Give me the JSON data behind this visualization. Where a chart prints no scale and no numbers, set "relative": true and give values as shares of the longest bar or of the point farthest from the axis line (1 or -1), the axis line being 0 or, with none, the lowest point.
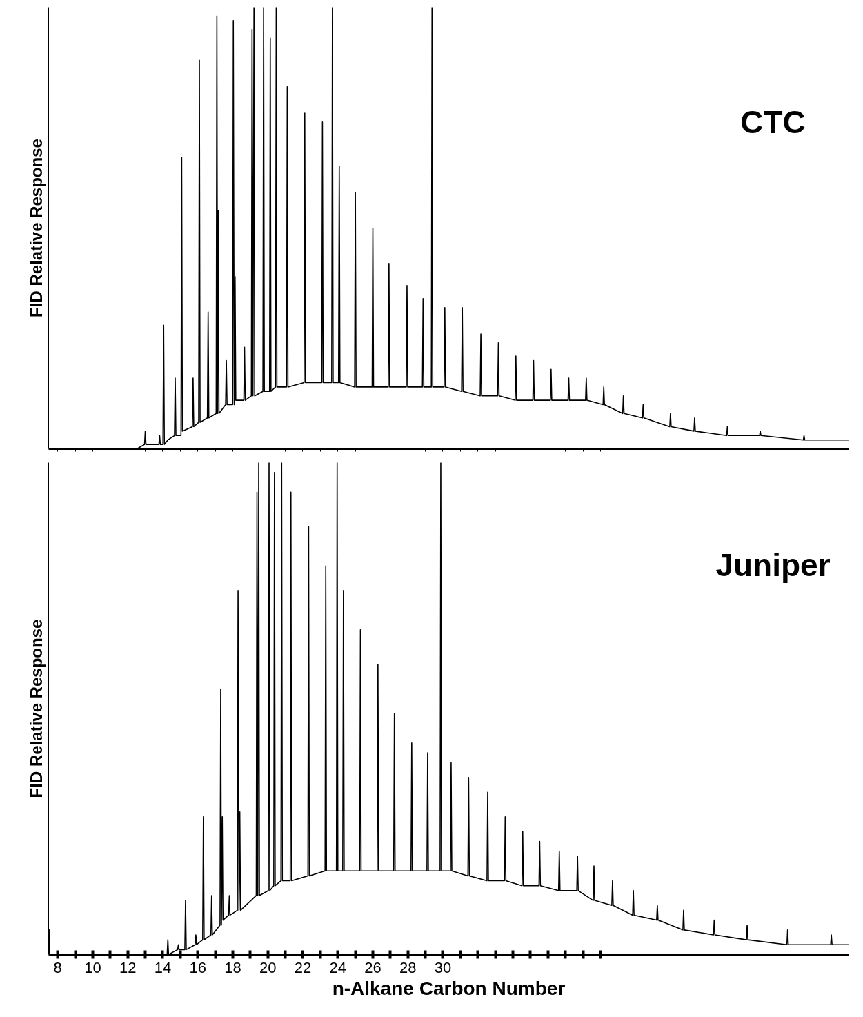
{
  "chart_data": [
    {
      "type": "line",
      "relative": true,
      "ylabel": "FID Relative Response",
      "annotations": [
        "CTC"
      ],
      "xlim": [
        7.48,
        53.19
      ],
      "tick_labels": false,
      "marker": "none",
      "line_style": "solid",
      "xticks": [
        8,
        9,
        10,
        11,
        12,
        13,
        14,
        15,
        16,
        17,
        18,
        19,
        20,
        21,
        22,
        23,
        24,
        25,
        26,
        27,
        28,
        29,
        30,
        31,
        32,
        33,
        34,
        35,
        36,
        37,
        38,
        39
      ],
      "series": [
        {
          "color": "#000000",
          "x": [
            7.48,
            9.22,
            11.06,
            12.53,
            12.96,
            13.0,
            13.04,
            13.51,
            13.78,
            13.82,
            13.86,
            14.01,
            14.05,
            14.09,
            14.29,
            14.67,
            14.71,
            14.75,
            15.04,
            15.08,
            15.12,
            15.69,
            15.73,
            15.77,
            16.05,
            16.09,
            16.13,
            16.55,
            16.59,
            16.63,
            17.05,
            17.09,
            17.13,
            17.17,
            17.21,
            17.59,
            17.63,
            17.67,
            17.99,
            18.03,
            18.08,
            18.13,
            18.17,
            18.63,
            18.67,
            18.71,
            19.06,
            19.1,
            19.15,
            19.21,
            19.25,
            19.72,
            19.76,
            19.8,
            20.1,
            20.14,
            20.18,
            20.44,
            20.48,
            20.52,
            21.07,
            21.11,
            21.15,
            22.07,
            22.11,
            22.15,
            23.08,
            23.12,
            23.16,
            23.65,
            23.69,
            23.73,
            24.04,
            24.08,
            24.12,
            24.96,
            25.0,
            25.04,
            25.96,
            26.0,
            26.04,
            26.88,
            26.92,
            26.96,
            27.91,
            27.95,
            27.99,
            28.83,
            28.87,
            28.91,
            29.34,
            29.38,
            29.42,
            30.07,
            30.11,
            30.15,
            31.07,
            31.11,
            31.15,
            32.13,
            32.17,
            32.21,
            33.13,
            33.17,
            33.21,
            34.13,
            34.17,
            34.21,
            35.14,
            35.18,
            35.22,
            36.14,
            36.18,
            36.22,
            37.15,
            37.19,
            37.23,
            38.15,
            38.19,
            38.23,
            39.15,
            39.19,
            39.23,
            40.27,
            40.31,
            40.35,
            41.4,
            41.44,
            41.48,
            42.96,
            43.0,
            43.04,
            44.34,
            44.38,
            44.42,
            46.21,
            46.25,
            46.29,
            48.09,
            48.13,
            48.17,
            50.59,
            50.63,
            50.67,
            53.19
          ],
          "values": [
            0,
            0,
            0,
            0,
            0.01,
            0.04,
            0.01,
            0.01,
            0.01,
            0.03,
            0.01,
            0.01,
            0.28,
            0.01,
            0.02,
            0.03,
            0.16,
            0.03,
            0.03,
            0.66,
            0.04,
            0.05,
            0.16,
            0.05,
            0.06,
            0.88,
            0.06,
            0.07,
            0.31,
            0.07,
            0.08,
            0.98,
            0.08,
            0.54,
            0.08,
            0.1,
            0.2,
            0.1,
            0.1,
            0.97,
            0.1,
            0.39,
            0.11,
            0.11,
            0.23,
            0.11,
            0.12,
            0.95,
            0.12,
            1.0,
            0.12,
            0.13,
            1.0,
            0.13,
            0.13,
            0.93,
            0.13,
            0.14,
            1.0,
            0.14,
            0.14,
            0.82,
            0.14,
            0.15,
            0.76,
            0.15,
            0.15,
            0.74,
            0.15,
            0.15,
            1.0,
            0.15,
            0.15,
            0.64,
            0.15,
            0.14,
            0.58,
            0.14,
            0.14,
            0.5,
            0.14,
            0.14,
            0.42,
            0.14,
            0.14,
            0.37,
            0.14,
            0.14,
            0.34,
            0.14,
            0.14,
            1.0,
            0.14,
            0.14,
            0.32,
            0.14,
            0.13,
            0.32,
            0.13,
            0.12,
            0.26,
            0.12,
            0.12,
            0.24,
            0.12,
            0.11,
            0.21,
            0.11,
            0.11,
            0.2,
            0.11,
            0.11,
            0.18,
            0.11,
            0.11,
            0.16,
            0.11,
            0.11,
            0.16,
            0.11,
            0.1,
            0.14,
            0.1,
            0.08,
            0.12,
            0.08,
            0.07,
            0.1,
            0.07,
            0.05,
            0.08,
            0.05,
            0.04,
            0.07,
            0.04,
            0.03,
            0.05,
            0.03,
            0.03,
            0.04,
            0.03,
            0.02,
            0.03,
            0.02,
            0.02
          ]
        }
      ]
    },
    {
      "type": "line",
      "relative": true,
      "ylabel": "FID Relative Response",
      "xlabel": "n-Alkane Carbon Number",
      "annotations": [
        "Juniper"
      ],
      "xlim": [
        7.48,
        53.19
      ],
      "tick_labels": "x",
      "marker": "none",
      "line_style": "solid",
      "xticks": [
        8,
        {
          "value": 9,
          "label": null
        },
        10,
        {
          "value": 11,
          "label": null
        },
        12,
        {
          "value": 13,
          "label": null
        },
        14,
        {
          "value": 15,
          "label": null
        },
        16,
        {
          "value": 17,
          "label": null
        },
        18,
        {
          "value": 19,
          "label": null
        },
        20,
        {
          "value": 21,
          "label": null
        },
        22,
        {
          "value": 23,
          "label": null
        },
        24,
        {
          "value": 25,
          "label": null
        },
        26,
        {
          "value": 27,
          "label": null
        },
        28,
        {
          "value": 29,
          "label": null
        },
        30,
        {
          "value": 31,
          "label": null
        },
        {
          "value": 32,
          "label": null
        },
        {
          "value": 33,
          "label": null
        },
        {
          "value": 34,
          "label": null
        },
        {
          "value": 35,
          "label": null
        },
        {
          "value": 36,
          "label": null
        },
        {
          "value": 37,
          "label": null
        },
        {
          "value": 38,
          "label": null
        },
        {
          "value": 39,
          "label": null
        }
      ],
      "series": [
        {
          "color": "#000000",
          "x": [
            7.48,
            7.51,
            7.53,
            9.22,
            11.06,
            13.26,
            14.25,
            14.29,
            14.33,
            14.85,
            14.89,
            14.93,
            15.26,
            15.3,
            15.34,
            15.85,
            15.89,
            15.93,
            16.28,
            16.32,
            16.36,
            16.75,
            16.79,
            16.83,
            17.27,
            17.31,
            17.35,
            17.4,
            17.44,
            17.76,
            17.8,
            17.84,
            18.26,
            18.3,
            18.35,
            18.4,
            18.44,
            19.34,
            19.38,
            19.43,
            19.48,
            19.52,
            20.03,
            20.07,
            20.11,
            20.34,
            20.38,
            20.42,
            20.75,
            20.79,
            20.83,
            21.28,
            21.32,
            21.36,
            22.29,
            22.33,
            22.37,
            23.27,
            23.31,
            23.35,
            23.92,
            23.96,
            24.0,
            24.28,
            24.32,
            24.36,
            25.25,
            25.29,
            25.33,
            26.25,
            26.29,
            26.33,
            27.19,
            27.23,
            27.27,
            28.18,
            28.22,
            28.26,
            29.09,
            29.13,
            29.17,
            29.84,
            29.88,
            29.92,
            30.43,
            30.47,
            30.51,
            31.43,
            31.47,
            31.51,
            32.52,
            32.56,
            32.6,
            33.52,
            33.56,
            33.6,
            34.52,
            34.56,
            34.6,
            35.49,
            35.53,
            35.57,
            36.61,
            36.65,
            36.69,
            37.65,
            37.69,
            37.73,
            38.59,
            38.63,
            38.67,
            39.65,
            39.69,
            39.73,
            40.84,
            40.88,
            40.92,
            42.21,
            42.25,
            42.29,
            43.71,
            43.75,
            43.79,
            45.46,
            45.5,
            45.54,
            47.34,
            47.38,
            47.42,
            49.65,
            49.69,
            49.73,
            52.15,
            52.19,
            52.23,
            53.19
          ],
          "values": [
            0,
            0.05,
            0,
            0,
            0,
            0,
            0,
            0.03,
            0,
            0.01,
            0.02,
            0.01,
            0.01,
            0.11,
            0.01,
            0.02,
            0.04,
            0.02,
            0.03,
            0.28,
            0.03,
            0.04,
            0.12,
            0.04,
            0.06,
            0.54,
            0.06,
            0.28,
            0.07,
            0.08,
            0.12,
            0.08,
            0.09,
            0.74,
            0.09,
            0.29,
            0.09,
            0.12,
            0.94,
            0.12,
            1.0,
            0.12,
            0.13,
            1.0,
            0.13,
            0.14,
            0.98,
            0.14,
            0.15,
            1.0,
            0.15,
            0.15,
            0.94,
            0.15,
            0.16,
            0.87,
            0.16,
            0.17,
            0.79,
            0.17,
            0.17,
            1.0,
            0.17,
            0.17,
            0.74,
            0.17,
            0.17,
            0.66,
            0.17,
            0.17,
            0.59,
            0.17,
            0.17,
            0.49,
            0.17,
            0.17,
            0.43,
            0.17,
            0.17,
            0.41,
            0.17,
            0.17,
            1.0,
            0.17,
            0.17,
            0.39,
            0.17,
            0.16,
            0.36,
            0.16,
            0.15,
            0.33,
            0.15,
            0.15,
            0.28,
            0.15,
            0.14,
            0.25,
            0.14,
            0.14,
            0.23,
            0.14,
            0.13,
            0.21,
            0.13,
            0.13,
            0.2,
            0.13,
            0.11,
            0.18,
            0.11,
            0.1,
            0.15,
            0.1,
            0.08,
            0.13,
            0.08,
            0.07,
            0.1,
            0.07,
            0.05,
            0.09,
            0.05,
            0.04,
            0.07,
            0.04,
            0.03,
            0.06,
            0.03,
            0.02,
            0.05,
            0.02,
            0.02,
            0.04,
            0.02,
            0.02
          ]
        }
      ]
    }
  ]
}
